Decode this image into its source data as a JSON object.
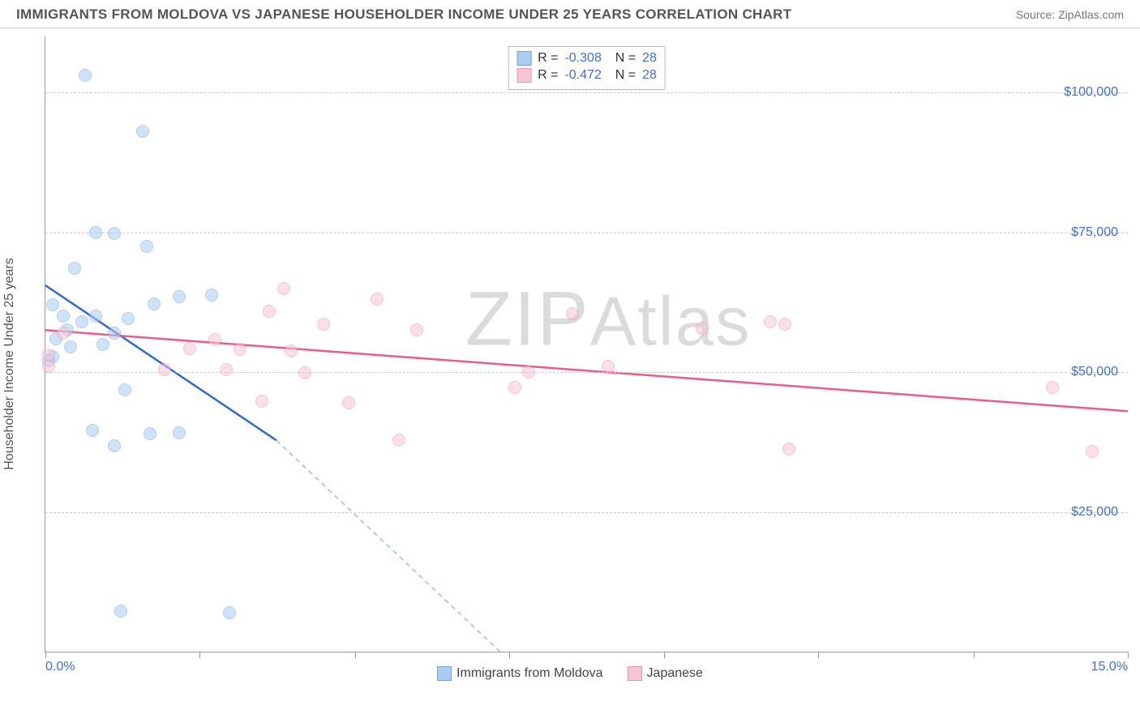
{
  "title": "IMMIGRANTS FROM MOLDOVA VS JAPANESE HOUSEHOLDER INCOME UNDER 25 YEARS CORRELATION CHART",
  "source": "Source: ZipAtlas.com",
  "watermark": "ZIPAtlas",
  "ylabel": "Householder Income Under 25 years",
  "chart": {
    "type": "scatter",
    "xlim": [
      0,
      15
    ],
    "ylim": [
      0,
      110000
    ],
    "xtick_min_label": "0.0%",
    "xtick_max_label": "15.0%",
    "xtick_positions": [
      0,
      2.14,
      4.29,
      6.43,
      8.57,
      10.71,
      12.86,
      15
    ],
    "ygrid": [
      {
        "value": 25000,
        "label": "$25,000"
      },
      {
        "value": 50000,
        "label": "$50,000"
      },
      {
        "value": 75000,
        "label": "$75,000"
      },
      {
        "value": 100000,
        "label": "$100,000"
      }
    ],
    "background_color": "#ffffff",
    "grid_color": "#cccccc",
    "axis_color": "#999999",
    "tick_label_color": "#3d6fe0",
    "title_color": "#555555",
    "title_fontsize": 17,
    "label_fontsize": 16,
    "marker_radius": 8,
    "marker_opacity": 0.55,
    "series": [
      {
        "name": "Immigrants from Moldova",
        "color_fill": "#a9cdf3",
        "color_stroke": "#6fa7e4",
        "line_color": "#2f69d6",
        "correlation_R": "-0.308",
        "correlation_N": "28",
        "regression": {
          "x1": 0.0,
          "y1": 65500,
          "x2_solid": 3.2,
          "y2_solid": 37800,
          "x2": 6.3,
          "y2": 0
        },
        "points": [
          {
            "x": 0.55,
            "y": 103000
          },
          {
            "x": 1.35,
            "y": 93000
          },
          {
            "x": 0.7,
            "y": 75000
          },
          {
            "x": 0.95,
            "y": 74800
          },
          {
            "x": 1.4,
            "y": 72500
          },
          {
            "x": 0.4,
            "y": 68500
          },
          {
            "x": 0.1,
            "y": 62000
          },
          {
            "x": 0.25,
            "y": 60000
          },
          {
            "x": 0.3,
            "y": 57500
          },
          {
            "x": 0.5,
            "y": 59000
          },
          {
            "x": 0.7,
            "y": 60000
          },
          {
            "x": 0.95,
            "y": 57000
          },
          {
            "x": 1.15,
            "y": 59500
          },
          {
            "x": 1.5,
            "y": 62200
          },
          {
            "x": 1.85,
            "y": 63500
          },
          {
            "x": 2.3,
            "y": 63800
          },
          {
            "x": 0.1,
            "y": 52800
          },
          {
            "x": 0.05,
            "y": 52000
          },
          {
            "x": 0.35,
            "y": 54500
          },
          {
            "x": 0.8,
            "y": 55000
          },
          {
            "x": 1.1,
            "y": 46800
          },
          {
            "x": 0.65,
            "y": 39500
          },
          {
            "x": 0.95,
            "y": 36800
          },
          {
            "x": 1.45,
            "y": 39000
          },
          {
            "x": 1.85,
            "y": 39200
          },
          {
            "x": 1.05,
            "y": 7300
          },
          {
            "x": 2.55,
            "y": 7000
          },
          {
            "x": 0.15,
            "y": 56000
          }
        ]
      },
      {
        "name": "Japanese",
        "color_fill": "#f6c6d3",
        "color_stroke": "#eb94af",
        "line_color": "#e85c8e",
        "correlation_R": "-0.472",
        "correlation_N": "28",
        "regression": {
          "x1": 0.0,
          "y1": 57500,
          "x2_solid": 15.0,
          "y2_solid": 43000,
          "x2": 15.0,
          "y2": 43000
        },
        "points": [
          {
            "x": 0.05,
            "y": 53000
          },
          {
            "x": 0.05,
            "y": 51000
          },
          {
            "x": 3.3,
            "y": 65000
          },
          {
            "x": 3.1,
            "y": 60800
          },
          {
            "x": 4.6,
            "y": 63000
          },
          {
            "x": 7.3,
            "y": 60500
          },
          {
            "x": 9.1,
            "y": 57800
          },
          {
            "x": 5.15,
            "y": 57500
          },
          {
            "x": 6.7,
            "y": 50000
          },
          {
            "x": 7.8,
            "y": 51000
          },
          {
            "x": 2.35,
            "y": 55800
          },
          {
            "x": 2.7,
            "y": 54000
          },
          {
            "x": 3.4,
            "y": 53800
          },
          {
            "x": 1.65,
            "y": 50500
          },
          {
            "x": 2.5,
            "y": 50500
          },
          {
            "x": 3.6,
            "y": 49800
          },
          {
            "x": 4.2,
            "y": 44500
          },
          {
            "x": 3.0,
            "y": 44800
          },
          {
            "x": 6.5,
            "y": 47300
          },
          {
            "x": 4.9,
            "y": 37800
          },
          {
            "x": 10.05,
            "y": 59000
          },
          {
            "x": 10.25,
            "y": 58500
          },
          {
            "x": 10.3,
            "y": 36200
          },
          {
            "x": 13.95,
            "y": 47200
          },
          {
            "x": 14.5,
            "y": 35800
          },
          {
            "x": 0.25,
            "y": 57000
          },
          {
            "x": 3.85,
            "y": 58500
          },
          {
            "x": 2.0,
            "y": 54200
          }
        ]
      }
    ]
  },
  "footer_legend": [
    {
      "label": "Immigrants from Moldova",
      "fill": "#a9cdf3",
      "stroke": "#6fa7e4"
    },
    {
      "label": "Japanese",
      "fill": "#f6c6d3",
      "stroke": "#eb94af"
    }
  ]
}
